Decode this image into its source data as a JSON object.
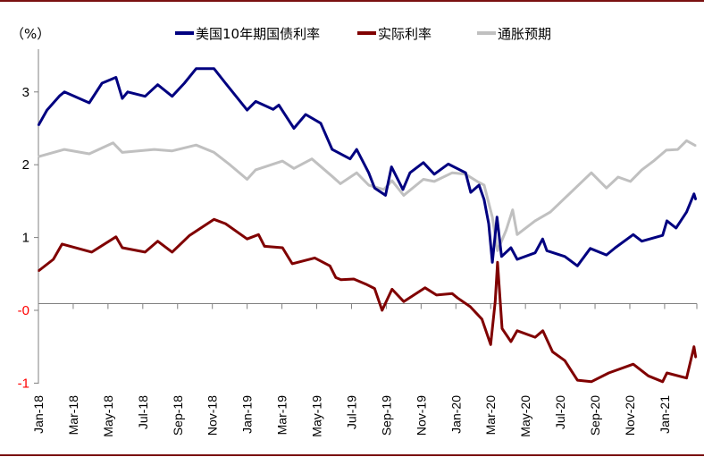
{
  "chart_data": {
    "type": "line",
    "title": "",
    "unit_label": "（%）",
    "xlabel": "",
    "ylabel": "%",
    "ylim": [
      -1,
      3.5
    ],
    "grid": false,
    "legend_position": "top-center",
    "y_ticks": [
      {
        "label": "3",
        "value": 3,
        "color": "#000000"
      },
      {
        "label": "2",
        "value": 2,
        "color": "#000000"
      },
      {
        "label": "1",
        "value": 1,
        "color": "#000000"
      },
      {
        "label": "-0",
        "value": 0,
        "color": "#ff0000"
      },
      {
        "label": "-1",
        "value": -1,
        "color": "#ff0000"
      }
    ],
    "x_ticks": [
      {
        "label": "Jan-18",
        "date": "2018-01-01"
      },
      {
        "label": "Mar-18",
        "date": "2018-03-01"
      },
      {
        "label": "May-18",
        "date": "2018-05-01"
      },
      {
        "label": "Jul-18",
        "date": "2018-07-01"
      },
      {
        "label": "Sep-18",
        "date": "2018-09-01"
      },
      {
        "label": "Nov-18",
        "date": "2018-11-01"
      },
      {
        "label": "Jan-19",
        "date": "2019-01-01"
      },
      {
        "label": "Mar-19",
        "date": "2019-03-01"
      },
      {
        "label": "May-19",
        "date": "2019-05-01"
      },
      {
        "label": "Jul-19",
        "date": "2019-07-01"
      },
      {
        "label": "Sep-19",
        "date": "2019-09-01"
      },
      {
        "label": "Nov-19",
        "date": "2019-11-01"
      },
      {
        "label": "Jan-20",
        "date": "2020-01-01"
      },
      {
        "label": "Mar-20",
        "date": "2020-03-01"
      },
      {
        "label": "May-20",
        "date": "2020-05-01"
      },
      {
        "label": "Jul-20",
        "date": "2020-07-01"
      },
      {
        "label": "Sep-20",
        "date": "2020-09-01"
      },
      {
        "label": "Nov-20",
        "date": "2020-11-01"
      },
      {
        "label": "Jan-21",
        "date": "2021-01-01"
      }
    ],
    "series": [
      {
        "name": "美国10年期国债利率",
        "color": "#000080",
        "points": [
          [
            "2018-01-01",
            2.54
          ],
          [
            "2018-01-16",
            2.75
          ],
          [
            "2018-02-08",
            2.95
          ],
          [
            "2018-02-16",
            3.0
          ],
          [
            "2018-03-29",
            2.85
          ],
          [
            "2018-04-21",
            3.12
          ],
          [
            "2018-05-15",
            3.2
          ],
          [
            "2018-05-26",
            2.91
          ],
          [
            "2018-06-05",
            3.0
          ],
          [
            "2018-07-05",
            2.94
          ],
          [
            "2018-07-27",
            3.1
          ],
          [
            "2018-08-22",
            2.94
          ],
          [
            "2018-09-13",
            3.12
          ],
          [
            "2018-10-03",
            3.32
          ],
          [
            "2018-11-04",
            3.32
          ],
          [
            "2018-11-24",
            3.12
          ],
          [
            "2019-01-01",
            2.75
          ],
          [
            "2019-01-16",
            2.87
          ],
          [
            "2019-02-16",
            2.76
          ],
          [
            "2019-02-26",
            2.82
          ],
          [
            "2019-03-22",
            2.5
          ],
          [
            "2019-04-12",
            2.69
          ],
          [
            "2019-05-08",
            2.57
          ],
          [
            "2019-05-28",
            2.21
          ],
          [
            "2019-06-29",
            2.08
          ],
          [
            "2019-07-10",
            2.21
          ],
          [
            "2019-07-31",
            1.89
          ],
          [
            "2019-08-11",
            1.68
          ],
          [
            "2019-08-30",
            1.58
          ],
          [
            "2019-09-10",
            1.97
          ],
          [
            "2019-09-30",
            1.66
          ],
          [
            "2019-10-12",
            1.89
          ],
          [
            "2019-11-05",
            2.03
          ],
          [
            "2019-11-24",
            1.87
          ],
          [
            "2019-12-18",
            2.01
          ],
          [
            "2020-01-18",
            1.89
          ],
          [
            "2020-01-27",
            1.62
          ],
          [
            "2020-02-11",
            1.72
          ],
          [
            "2020-02-20",
            1.52
          ],
          [
            "2020-02-28",
            1.19
          ],
          [
            "2020-03-04",
            0.66
          ],
          [
            "2020-03-12",
            1.28
          ],
          [
            "2020-03-20",
            0.74
          ],
          [
            "2020-04-06",
            0.86
          ],
          [
            "2020-04-17",
            0.7
          ],
          [
            "2020-05-18",
            0.79
          ],
          [
            "2020-05-31",
            0.98
          ],
          [
            "2020-06-08",
            0.82
          ],
          [
            "2020-07-09",
            0.74
          ],
          [
            "2020-07-31",
            0.61
          ],
          [
            "2020-08-23",
            0.85
          ],
          [
            "2020-09-21",
            0.76
          ],
          [
            "2020-10-06",
            0.86
          ],
          [
            "2020-11-07",
            1.04
          ],
          [
            "2020-11-22",
            0.95
          ],
          [
            "2020-12-28",
            1.03
          ],
          [
            "2021-01-05",
            1.23
          ],
          [
            "2021-01-21",
            1.13
          ],
          [
            "2021-02-09",
            1.35
          ],
          [
            "2021-02-22",
            1.6
          ],
          [
            "2021-02-25",
            1.52
          ]
        ]
      },
      {
        "name": "实际利率",
        "color": "#800000",
        "points": [
          [
            "2018-01-01",
            0.54
          ],
          [
            "2018-01-27",
            0.7
          ],
          [
            "2018-02-12",
            0.91
          ],
          [
            "2018-04-03",
            0.8
          ],
          [
            "2018-05-15",
            1.01
          ],
          [
            "2018-05-26",
            0.86
          ],
          [
            "2018-07-05",
            0.8
          ],
          [
            "2018-07-27",
            0.95
          ],
          [
            "2018-08-22",
            0.8
          ],
          [
            "2018-09-22",
            1.03
          ],
          [
            "2018-11-04",
            1.25
          ],
          [
            "2018-11-24",
            1.19
          ],
          [
            "2019-01-01",
            0.98
          ],
          [
            "2019-01-21",
            1.04
          ],
          [
            "2019-02-01",
            0.88
          ],
          [
            "2019-03-02",
            0.86
          ],
          [
            "2019-03-19",
            0.64
          ],
          [
            "2019-04-28",
            0.72
          ],
          [
            "2019-05-24",
            0.61
          ],
          [
            "2019-06-04",
            0.45
          ],
          [
            "2019-06-13",
            0.42
          ],
          [
            "2019-07-05",
            0.43
          ],
          [
            "2019-07-26",
            0.36
          ],
          [
            "2019-08-11",
            0.3
          ],
          [
            "2019-08-24",
            0.0
          ],
          [
            "2019-09-11",
            0.29
          ],
          [
            "2019-10-01",
            0.12
          ],
          [
            "2019-11-08",
            0.31
          ],
          [
            "2019-11-28",
            0.21
          ],
          [
            "2019-12-25",
            0.23
          ],
          [
            "2020-01-04",
            0.17
          ],
          [
            "2020-01-26",
            0.05
          ],
          [
            "2020-02-16",
            -0.12
          ],
          [
            "2020-03-01",
            -0.47
          ],
          [
            "2020-03-09",
            0.12
          ],
          [
            "2020-03-13",
            0.66
          ],
          [
            "2020-03-21",
            -0.25
          ],
          [
            "2020-04-06",
            -0.43
          ],
          [
            "2020-04-17",
            -0.28
          ],
          [
            "2020-05-18",
            -0.37
          ],
          [
            "2020-06-01",
            -0.28
          ],
          [
            "2020-06-18",
            -0.57
          ],
          [
            "2020-07-09",
            -0.69
          ],
          [
            "2020-07-31",
            -0.96
          ],
          [
            "2020-08-25",
            -0.98
          ],
          [
            "2020-09-25",
            -0.86
          ],
          [
            "2020-11-07",
            -0.74
          ],
          [
            "2020-12-03",
            -0.9
          ],
          [
            "2020-12-28",
            -0.98
          ],
          [
            "2021-01-05",
            -0.86
          ],
          [
            "2021-02-09",
            -0.93
          ],
          [
            "2021-02-22",
            -0.5
          ],
          [
            "2021-02-25",
            -0.65
          ]
        ]
      },
      {
        "name": "通胀预期",
        "color": "#c0c0c0",
        "points": [
          [
            "2018-01-01",
            2.11
          ],
          [
            "2018-02-16",
            2.21
          ],
          [
            "2018-03-29",
            2.15
          ],
          [
            "2018-05-10",
            2.3
          ],
          [
            "2018-05-26",
            2.17
          ],
          [
            "2018-07-21",
            2.21
          ],
          [
            "2018-08-22",
            2.19
          ],
          [
            "2018-10-03",
            2.27
          ],
          [
            "2018-11-04",
            2.17
          ],
          [
            "2018-11-30",
            2.01
          ],
          [
            "2019-01-01",
            1.8
          ],
          [
            "2019-01-16",
            1.93
          ],
          [
            "2019-03-02",
            2.05
          ],
          [
            "2019-03-22",
            1.95
          ],
          [
            "2019-04-23",
            2.08
          ],
          [
            "2019-05-28",
            1.84
          ],
          [
            "2019-06-12",
            1.74
          ],
          [
            "2019-07-10",
            1.89
          ],
          [
            "2019-07-31",
            1.72
          ],
          [
            "2019-08-27",
            1.66
          ],
          [
            "2019-09-11",
            1.78
          ],
          [
            "2019-10-01",
            1.58
          ],
          [
            "2019-11-05",
            1.8
          ],
          [
            "2019-11-24",
            1.77
          ],
          [
            "2019-12-25",
            1.89
          ],
          [
            "2020-01-18",
            1.87
          ],
          [
            "2020-02-08",
            1.77
          ],
          [
            "2020-02-20",
            1.72
          ],
          [
            "2020-03-04",
            1.28
          ],
          [
            "2020-03-13",
            0.82
          ],
          [
            "2020-03-28",
            1.1
          ],
          [
            "2020-04-09",
            1.38
          ],
          [
            "2020-04-17",
            1.04
          ],
          [
            "2020-05-18",
            1.23
          ],
          [
            "2020-06-14",
            1.35
          ],
          [
            "2020-07-09",
            1.54
          ],
          [
            "2020-08-09",
            1.77
          ],
          [
            "2020-08-25",
            1.89
          ],
          [
            "2020-09-21",
            1.68
          ],
          [
            "2020-10-11",
            1.83
          ],
          [
            "2020-11-02",
            1.77
          ],
          [
            "2020-11-22",
            1.93
          ],
          [
            "2020-12-12",
            2.05
          ],
          [
            "2021-01-04",
            2.2
          ],
          [
            "2021-01-24",
            2.21
          ],
          [
            "2021-02-09",
            2.33
          ],
          [
            "2021-02-25",
            2.26
          ]
        ]
      }
    ]
  }
}
